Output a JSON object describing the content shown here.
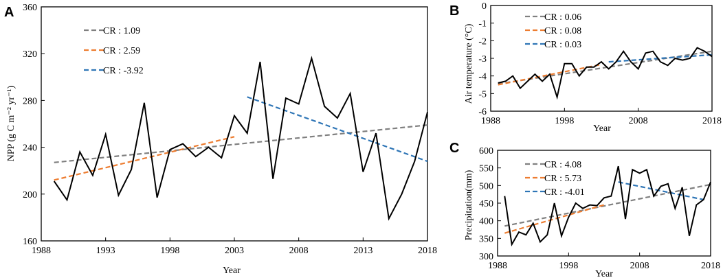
{
  "colors": {
    "series": "#000000",
    "trend_full": "#808080",
    "trend_early": "#ED7D31",
    "trend_late": "#2E75B6"
  },
  "chart_data": [
    {
      "panel": "A",
      "type": "line",
      "xlabel": "Year",
      "ylabel": "NPP (g C m⁻² yr⁻¹)",
      "xlim": [
        1988,
        2018
      ],
      "ylim": [
        160,
        360
      ],
      "xticks": [
        1988,
        1993,
        1998,
        2003,
        2008,
        2013,
        2018
      ],
      "yticks": [
        160,
        200,
        240,
        280,
        320,
        360
      ],
      "x": [
        1989,
        1990,
        1991,
        1992,
        1993,
        1994,
        1995,
        1996,
        1997,
        1998,
        1999,
        2000,
        2001,
        2002,
        2003,
        2004,
        2005,
        2006,
        2007,
        2008,
        2009,
        2010,
        2011,
        2012,
        2013,
        2014,
        2015,
        2016,
        2017,
        2018
      ],
      "values": [
        211,
        195,
        236,
        216,
        251,
        199,
        221,
        278,
        197,
        238,
        243,
        232,
        240,
        231,
        267,
        252,
        313,
        213,
        282,
        277,
        316,
        275,
        265,
        286,
        219,
        252,
        179,
        200,
        228,
        270
      ],
      "trends": [
        {
          "label": "CR : 1.09",
          "color": "#808080",
          "x": [
            1989,
            2018
          ],
          "y": [
            227,
            259
          ]
        },
        {
          "label": "CR : 2.59",
          "color": "#ED7D31",
          "x": [
            1989,
            2003
          ],
          "y": [
            212,
            249
          ]
        },
        {
          "label": "CR : -3.92",
          "color": "#2E75B6",
          "x": [
            2004,
            2018
          ],
          "y": [
            283,
            228
          ]
        }
      ]
    },
    {
      "panel": "B",
      "type": "line",
      "xlabel": "Year",
      "ylabel": "Air temperature (°C)",
      "xlim": [
        1988,
        2018
      ],
      "ylim": [
        -6,
        0
      ],
      "xticks": [
        1988,
        1998,
        2008,
        2018
      ],
      "yticks": [
        -6,
        -5,
        -4,
        -3,
        -2,
        -1,
        0
      ],
      "x": [
        1989,
        1990,
        1991,
        1992,
        1993,
        1994,
        1995,
        1996,
        1997,
        1998,
        1999,
        2000,
        2001,
        2002,
        2003,
        2004,
        2005,
        2006,
        2007,
        2008,
        2009,
        2010,
        2011,
        2012,
        2013,
        2014,
        2015,
        2016,
        2017,
        2018
      ],
      "values": [
        -4.4,
        -4.3,
        -4.0,
        -4.7,
        -4.3,
        -3.9,
        -4.3,
        -3.9,
        -5.2,
        -3.3,
        -3.3,
        -4.0,
        -3.5,
        -3.5,
        -3.2,
        -3.6,
        -3.2,
        -2.6,
        -3.2,
        -3.6,
        -2.7,
        -2.6,
        -3.2,
        -3.4,
        -3.0,
        -3.1,
        -3.0,
        -2.4,
        -2.6,
        -2.9
      ],
      "trends": [
        {
          "label": "CR : 0.06",
          "color": "#808080",
          "x": [
            1989,
            2018
          ],
          "y": [
            -4.45,
            -2.6
          ]
        },
        {
          "label": "CR : 0.08",
          "color": "#ED7D31",
          "x": [
            1989,
            2003
          ],
          "y": [
            -4.5,
            -3.35
          ]
        },
        {
          "label": "CR : 0.03",
          "color": "#2E75B6",
          "x": [
            2004,
            2018
          ],
          "y": [
            -3.2,
            -2.8
          ]
        }
      ]
    },
    {
      "panel": "C",
      "type": "line",
      "xlabel": "Year",
      "ylabel": "Precipitation(mm)",
      "xlim": [
        1988,
        2018
      ],
      "ylim": [
        300,
        600
      ],
      "xticks": [
        1988,
        1998,
        2008,
        2018
      ],
      "yticks": [
        300,
        350,
        400,
        450,
        500,
        550,
        600
      ],
      "x": [
        1989,
        1990,
        1991,
        1992,
        1993,
        1994,
        1995,
        1996,
        1997,
        1998,
        1999,
        2000,
        2001,
        2002,
        2003,
        2004,
        2005,
        2006,
        2007,
        2008,
        2009,
        2010,
        2011,
        2012,
        2013,
        2014,
        2015,
        2016,
        2017,
        2018
      ],
      "values": [
        470,
        333,
        368,
        360,
        393,
        340,
        360,
        450,
        357,
        410,
        450,
        435,
        445,
        443,
        465,
        470,
        555,
        405,
        545,
        535,
        545,
        470,
        498,
        505,
        435,
        495,
        357,
        445,
        460,
        510
      ],
      "trends": [
        {
          "label": "CR : 4.08",
          "color": "#808080",
          "x": [
            1989,
            2018
          ],
          "y": [
            385,
            503
          ]
        },
        {
          "label": "CR : 5.73",
          "color": "#ED7D31",
          "x": [
            1989,
            2003
          ],
          "y": [
            365,
            445
          ]
        },
        {
          "label": "CR : -4.01",
          "color": "#2E75B6",
          "x": [
            2005,
            2017
          ],
          "y": [
            510,
            460
          ]
        }
      ]
    }
  ]
}
